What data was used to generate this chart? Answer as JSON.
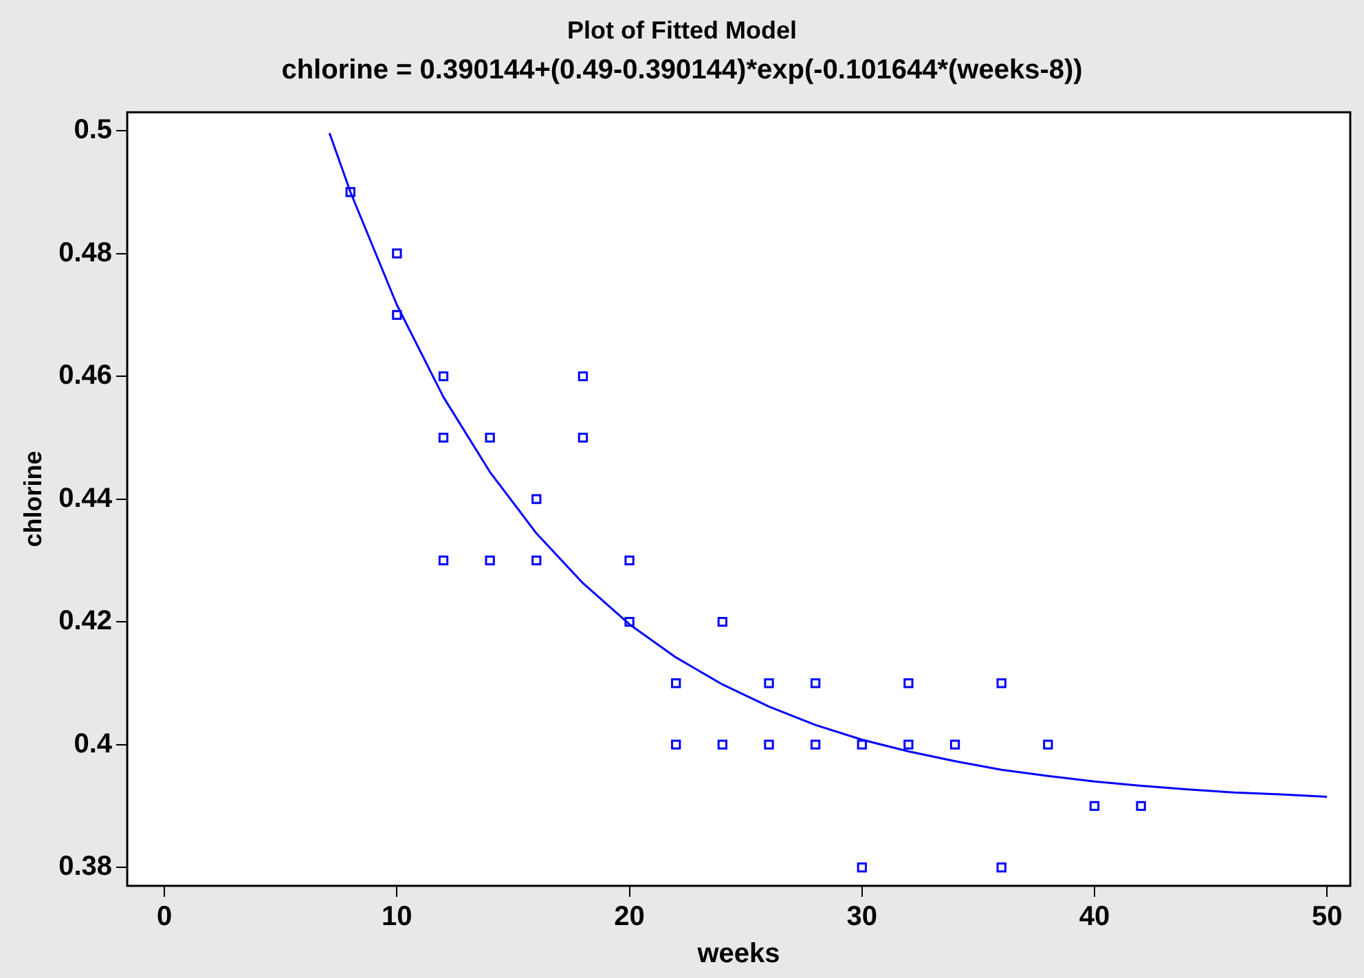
{
  "chart_data": {
    "type": "scatter",
    "title": "Plot of Fitted Model",
    "subtitle": "chlorine = 0.390144+(0.49-0.390144)*exp(-0.101644*(weeks-8))",
    "xlabel": "weeks",
    "ylabel": "chlorine",
    "xlim": [
      -1.6,
      51
    ],
    "xticks": [
      0,
      10,
      20,
      30,
      40,
      50
    ],
    "ylim": [
      0.377,
      0.503
    ],
    "yticks": [
      0.38,
      0.4,
      0.42,
      0.44,
      0.46,
      0.48,
      0.5
    ],
    "grid": false,
    "legend": false,
    "marker": "square",
    "series": [
      {
        "type": "scatter",
        "color": "#0000ff",
        "x": [
          8,
          10,
          10,
          12,
          12,
          12,
          14,
          14,
          16,
          16,
          18,
          18,
          20,
          20,
          22,
          22,
          24,
          24,
          26,
          26,
          28,
          28,
          30,
          30,
          32,
          32,
          34,
          36,
          36,
          38,
          40,
          42
        ],
        "values": [
          0.49,
          0.48,
          0.47,
          0.46,
          0.45,
          0.43,
          0.45,
          0.43,
          0.44,
          0.43,
          0.46,
          0.45,
          0.43,
          0.42,
          0.41,
          0.4,
          0.42,
          0.4,
          0.41,
          0.4,
          0.41,
          0.4,
          0.4,
          0.38,
          0.41,
          0.4,
          0.4,
          0.41,
          0.38,
          0.4,
          0.39,
          0.39
        ]
      },
      {
        "type": "line",
        "color": "#0000ff",
        "marker": "none",
        "line_style": "solid",
        "x": [
          7.1,
          8,
          10,
          12,
          14,
          16,
          18,
          20,
          22,
          24,
          26,
          28,
          30,
          32,
          34,
          36,
          38,
          40,
          42,
          44,
          46,
          48,
          50
        ],
        "values": [
          0.4996,
          0.49,
          0.4716,
          0.4566,
          0.4444,
          0.4344,
          0.4263,
          0.4196,
          0.4142,
          0.4098,
          0.4062,
          0.4032,
          0.4008,
          0.3989,
          0.3973,
          0.3959,
          0.3949,
          0.394,
          0.3933,
          0.3927,
          0.3922,
          0.3919,
          0.3915
        ]
      }
    ]
  }
}
